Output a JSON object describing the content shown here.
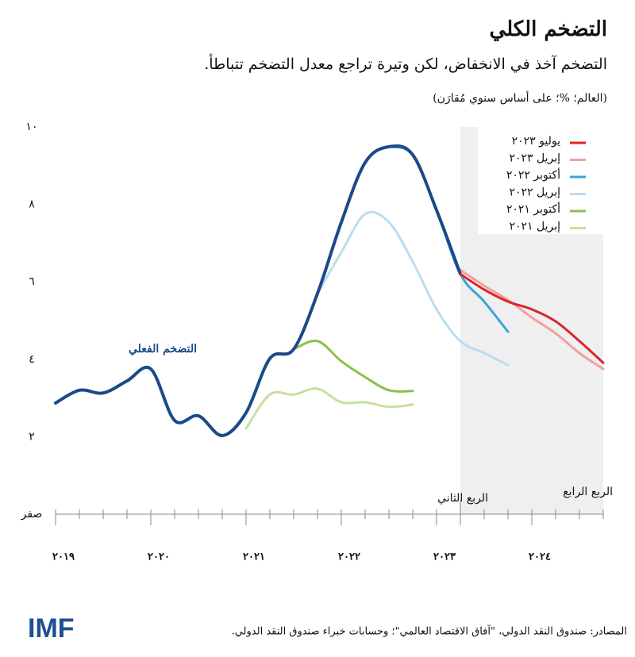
{
  "chart_data": {
    "type": "line",
    "title": "التضخم الكلي",
    "subtitle": "التضخم آخذ في الانخفاض، لكن وتيرة تراجع معدل التضخم تتباطأ.",
    "note": "(العالم؛ %؛ على أساس سنوي مُقارَن)",
    "source": "المصادر: صندوق النقد الدولي، \"آفاق الاقتصاد العالمي\"؛ وحسابات خبراء صندوق النقد الدولي.",
    "logo": "IMF",
    "annotations": [
      "الربع الثاني",
      "الربع الرابع"
    ],
    "shade_from": 2023.25,
    "x": [
      2019,
      2019.25,
      2019.5,
      2019.75,
      2020,
      2020.25,
      2020.5,
      2020.75,
      2021,
      2021.25,
      2021.5,
      2021.75,
      2022,
      2022.25,
      2022.5,
      2022.75,
      2023,
      2023.25,
      2023.5,
      2023.75,
      2024,
      2024.25,
      2024.5,
      2024.75
    ],
    "xlim": [
      2019,
      2024.75
    ],
    "xticks": [
      {
        "value": 2019,
        "label": "٢٠١٩"
      },
      {
        "value": 2020,
        "label": "٢٠٢٠"
      },
      {
        "value": 2021,
        "label": "٢٠٢١"
      },
      {
        "value": 2022,
        "label": "٢٠٢٢"
      },
      {
        "value": 2023,
        "label": "٢٠٢٣"
      },
      {
        "value": 2024,
        "label": "٢٠٢٤"
      }
    ],
    "xminorticks": [
      2019.25,
      2019.5,
      2019.75,
      2020.25,
      2020.5,
      2020.75,
      2021.25,
      2021.5,
      2021.75,
      2022.25,
      2022.5,
      2022.75,
      2023.25,
      2023.5,
      2023.75,
      2024.25,
      2024.5,
      2024.75
    ],
    "ylim": [
      0,
      10
    ],
    "yticks": [
      {
        "value": 0,
        "label": "صفر"
      },
      {
        "value": 2,
        "label": "٢"
      },
      {
        "value": 4,
        "label": "٤"
      },
      {
        "value": 6,
        "label": "٦"
      },
      {
        "value": 8,
        "label": "٨"
      },
      {
        "value": 10,
        "label": "١٠"
      }
    ],
    "series": [
      {
        "name": "إبريل ٢٠٢١",
        "color": "#c5e0a0",
        "values": [
          null,
          null,
          null,
          null,
          null,
          null,
          null,
          null,
          2.21,
          3.09,
          3.09,
          3.24,
          2.89,
          2.89,
          2.77,
          2.83,
          null,
          null,
          null,
          null,
          null,
          null,
          null,
          null
        ]
      },
      {
        "name": "أكتوبر ٢٠٢١",
        "color": "#8cc04a",
        "values": [
          null,
          null,
          null,
          null,
          null,
          null,
          null,
          null,
          null,
          null,
          4.26,
          4.47,
          3.95,
          3.54,
          3.2,
          3.18,
          null,
          null,
          null,
          null,
          null,
          null,
          null,
          null
        ]
      },
      {
        "name": "إبريل ٢٠٢٢",
        "color": "#bcdcf0",
        "values": [
          null,
          null,
          null,
          null,
          null,
          null,
          null,
          null,
          null,
          null,
          null,
          5.7,
          6.76,
          7.75,
          7.54,
          6.52,
          5.29,
          4.47,
          4.16,
          3.85,
          null,
          null,
          null,
          null
        ]
      },
      {
        "name": "أكتوبر ٢٠٢٢",
        "color": "#3aa6d8",
        "values": [
          null,
          null,
          null,
          null,
          null,
          null,
          null,
          null,
          null,
          null,
          null,
          null,
          null,
          null,
          9.49,
          9.28,
          7.85,
          6.2,
          5.49,
          4.71,
          null,
          null,
          null,
          null
        ]
      },
      {
        "name": "إبريل ٢٠٢٣",
        "color": "#f2a0a0",
        "values": [
          null,
          null,
          null,
          null,
          null,
          null,
          null,
          null,
          null,
          null,
          null,
          null,
          null,
          null,
          null,
          null,
          null,
          6.31,
          5.9,
          5.53,
          5.08,
          4.67,
          4.16,
          3.75
        ]
      },
      {
        "name": "التضخم الفعلي",
        "color": "#1a4a8a",
        "label_position": "inline",
        "values": [
          2.87,
          3.2,
          3.13,
          3.44,
          3.75,
          2.42,
          2.54,
          2.03,
          2.62,
          4.02,
          4.26,
          5.7,
          7.54,
          9.08,
          9.49,
          9.28,
          7.85,
          6.2,
          null,
          null,
          null,
          null,
          null,
          null
        ]
      },
      {
        "name": "يوليو ٢٠٢٣",
        "color": "#d7262b",
        "values": [
          null,
          null,
          null,
          null,
          null,
          null,
          null,
          null,
          null,
          null,
          null,
          null,
          null,
          null,
          null,
          null,
          null,
          6.2,
          5.8,
          5.49,
          5.29,
          4.98,
          4.47,
          3.91
        ]
      }
    ]
  }
}
